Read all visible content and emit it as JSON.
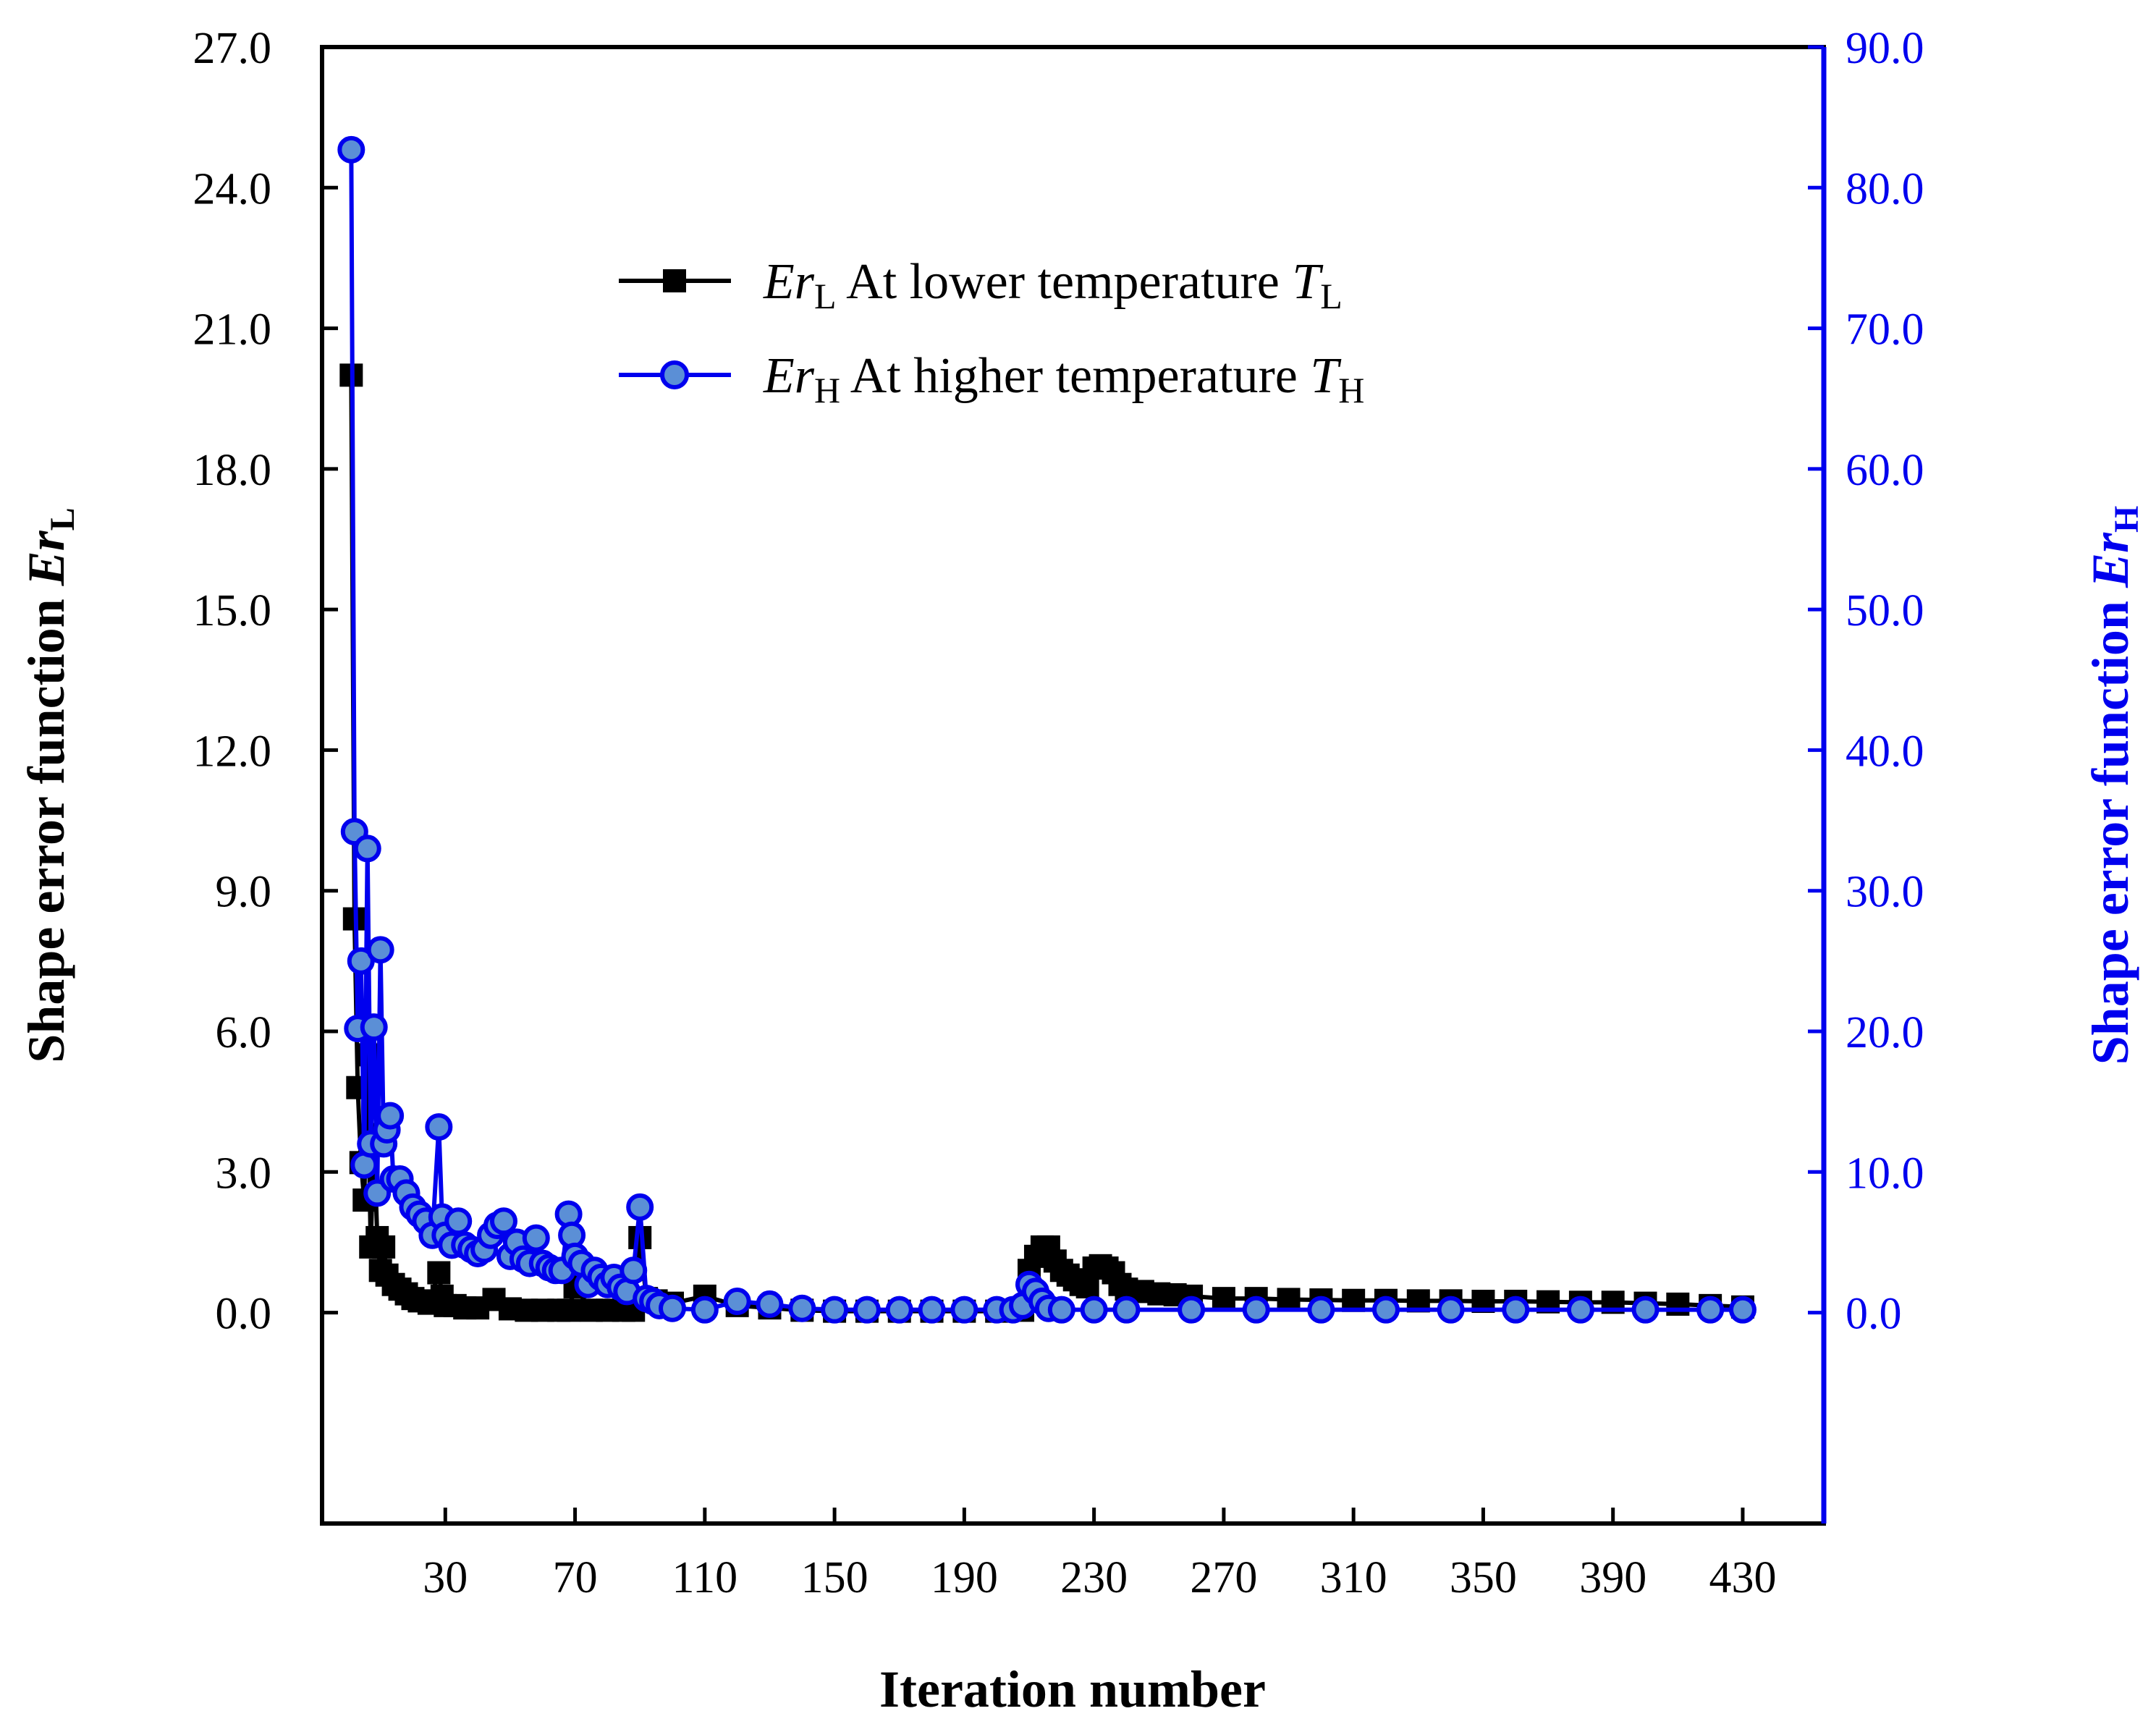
{
  "chart_data": {
    "type": "line",
    "title": "",
    "xlabel": "Iteration number",
    "ylabel_left": {
      "text": "Shape error function ",
      "var": "Er",
      "sub": "L"
    },
    "ylabel_right": {
      "text": "Shape error function ",
      "var": "Er",
      "sub": "H"
    },
    "xlim": [
      -8,
      455
    ],
    "ylim_left": [
      -4.5,
      27.0
    ],
    "ylim_right": [
      -15.0,
      90.0
    ],
    "x_ticks": [
      30,
      70,
      110,
      150,
      190,
      230,
      270,
      310,
      350,
      390,
      430
    ],
    "x_tick_labels": [
      "30",
      "70",
      "110",
      "150",
      "190",
      "230",
      "270",
      "310",
      "350",
      "390",
      "430"
    ],
    "y_left_ticks": [
      0,
      3,
      6,
      9,
      12,
      15,
      18,
      21,
      24,
      27
    ],
    "y_left_tick_labels": [
      "0.0",
      "3.0",
      "6.0",
      "9.0",
      "12.0",
      "15.0",
      "18.0",
      "21.0",
      "24.0",
      "27.0"
    ],
    "y_right_ticks": [
      0,
      10,
      20,
      30,
      40,
      50,
      60,
      70,
      80,
      90
    ],
    "y_right_tick_labels": [
      "0.0",
      "10.0",
      "20.0",
      "30.0",
      "40.0",
      "50.0",
      "60.0",
      "70.0",
      "80.0",
      "90.0"
    ],
    "legend": {
      "placement": "top-center",
      "entries": [
        {
          "var": "Er",
          "sub": "L",
          "label": " At lower temperature ",
          "tvar": "T",
          "tsub": "L"
        },
        {
          "var": "Er",
          "sub": "H",
          "label": " At higher temperature ",
          "tvar": "T",
          "tsub": "H"
        }
      ]
    },
    "colors": {
      "series_L": "#000000",
      "series_H": "#0000ee",
      "marker_H_fill": "#5b8fd6",
      "axis_right": "#0000ee"
    },
    "series": [
      {
        "name": "Er_L At lower temperature T_L",
        "axis": "left",
        "marker": "square",
        "x": [
          1,
          2,
          3,
          4,
          5,
          6,
          7,
          8,
          9,
          10,
          11,
          12,
          14,
          16,
          18,
          20,
          22,
          25,
          28,
          29,
          30,
          33,
          36,
          40,
          45,
          50,
          55,
          60,
          65,
          68,
          70,
          75,
          80,
          85,
          88,
          90,
          92,
          95,
          100,
          110,
          120,
          130,
          140,
          150,
          160,
          170,
          180,
          190,
          200,
          208,
          210,
          212,
          214,
          216,
          218,
          220,
          222,
          224,
          226,
          228,
          230,
          232,
          234,
          236,
          238,
          240,
          245,
          250,
          255,
          260,
          270,
          280,
          290,
          300,
          310,
          320,
          330,
          340,
          350,
          360,
          370,
          380,
          390,
          400,
          410,
          420,
          430
        ],
        "values": [
          20.0,
          8.4,
          4.8,
          3.2,
          2.4,
          5.5,
          1.4,
          3.8,
          1.6,
          0.9,
          1.4,
          0.8,
          0.6,
          0.5,
          0.4,
          0.3,
          0.25,
          0.2,
          0.85,
          0.35,
          0.15,
          0.15,
          0.1,
          0.1,
          0.28,
          0.08,
          0.05,
          0.05,
          0.05,
          0.05,
          0.55,
          0.05,
          0.05,
          0.05,
          0.05,
          1.6,
          0.3,
          0.25,
          0.2,
          0.35,
          0.15,
          0.1,
          0.05,
          0.03,
          0.03,
          0.03,
          0.03,
          0.03,
          0.03,
          0.05,
          0.9,
          1.2,
          1.4,
          1.4,
          1.1,
          0.9,
          0.8,
          0.7,
          0.6,
          0.55,
          0.95,
          1.0,
          0.95,
          0.85,
          0.6,
          0.5,
          0.45,
          0.4,
          0.38,
          0.35,
          0.3,
          0.3,
          0.28,
          0.27,
          0.26,
          0.26,
          0.25,
          0.25,
          0.24,
          0.24,
          0.23,
          0.22,
          0.22,
          0.2,
          0.18,
          0.15,
          0.12
        ]
      },
      {
        "name": "Er_H At higher temperature T_H",
        "axis": "right",
        "marker": "circle",
        "x": [
          1,
          2,
          3,
          4,
          5,
          6,
          7,
          8,
          9,
          10,
          11,
          12,
          13,
          14,
          16,
          18,
          20,
          22,
          24,
          26,
          28,
          29,
          30,
          32,
          34,
          36,
          38,
          40,
          42,
          44,
          46,
          48,
          50,
          52,
          54,
          56,
          58,
          60,
          62,
          64,
          66,
          68,
          69,
          70,
          72,
          74,
          76,
          78,
          80,
          82,
          84,
          86,
          88,
          90,
          92,
          94,
          96,
          100,
          110,
          120,
          130,
          140,
          150,
          160,
          170,
          180,
          190,
          200,
          205,
          208,
          210,
          212,
          214,
          216,
          220,
          230,
          240,
          260,
          280,
          300,
          320,
          340,
          360,
          380,
          400,
          420,
          430
        ],
        "values": [
          82.7,
          34.2,
          20.2,
          25.0,
          10.5,
          33.0,
          12.0,
          20.3,
          8.5,
          25.8,
          12.0,
          13.0,
          14.0,
          9.5,
          9.5,
          8.5,
          7.5,
          7.0,
          6.5,
          5.5,
          13.2,
          6.8,
          5.5,
          4.8,
          6.5,
          4.8,
          4.5,
          4.2,
          4.5,
          5.5,
          6.2,
          6.5,
          4.0,
          5.0,
          3.8,
          3.5,
          5.3,
          3.5,
          3.2,
          3.0,
          3.0,
          7.0,
          5.5,
          4.0,
          3.5,
          2.0,
          3.0,
          2.5,
          2.0,
          2.5,
          1.8,
          1.5,
          3.0,
          7.5,
          1.0,
          0.8,
          0.5,
          0.3,
          0.2,
          0.8,
          0.6,
          0.3,
          0.2,
          0.2,
          0.2,
          0.2,
          0.2,
          0.2,
          0.2,
          0.5,
          2.0,
          1.5,
          0.8,
          0.3,
          0.2,
          0.2,
          0.2,
          0.2,
          0.2,
          0.2,
          0.2,
          0.2,
          0.2,
          0.2,
          0.2,
          0.2,
          0.2
        ]
      }
    ]
  }
}
